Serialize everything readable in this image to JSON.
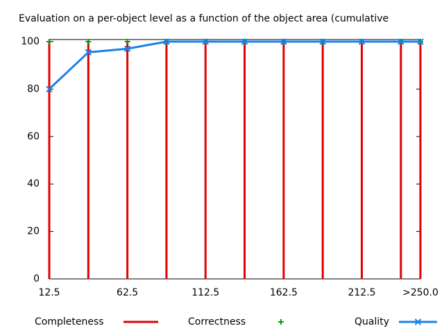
{
  "chart_data": {
    "type": "mixed",
    "title": "Evaluation on a per-object level as a function of the object area (cumulative",
    "x": [
      12.5,
      37.5,
      62.5,
      87.5,
      112.5,
      137.5,
      162.5,
      187.5,
      212.5,
      237.5,
      250
    ],
    "xlim": [
      12.5,
      250
    ],
    "xticks": [
      12.5,
      62.5,
      112.5,
      162.5,
      212.5,
      {
        "value": 250,
        "label": ">250.0"
      }
    ],
    "ylim": [
      0,
      100
    ],
    "yticks": [
      0,
      20,
      40,
      60,
      80,
      100
    ],
    "series": [
      {
        "name": "Completeness",
        "color": "#e00000",
        "style": "impulses",
        "values": [
          100,
          100,
          100,
          100,
          100,
          100,
          100,
          100,
          100,
          100,
          100
        ]
      },
      {
        "name": "Correctness",
        "color": "#00a000",
        "style": "points",
        "values": [
          100,
          100,
          100,
          100,
          100,
          100,
          100,
          100,
          100,
          100,
          100
        ]
      },
      {
        "name": "Quality",
        "color": "#1a80e8",
        "style": "linespoints",
        "values": [
          80,
          95.5,
          97,
          100,
          100,
          100,
          100,
          100,
          100,
          100,
          100
        ]
      }
    ]
  }
}
